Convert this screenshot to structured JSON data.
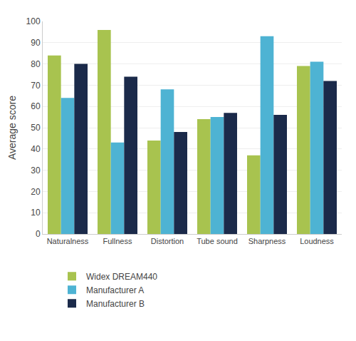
{
  "chart_data": {
    "type": "bar",
    "ylabel": "Average score",
    "categories": [
      "Naturalness",
      "Fullness",
      "Distortion",
      "Tube sound",
      "Sharpness",
      "Loudness"
    ],
    "series": [
      {
        "name": "Widex DREAM440",
        "color": "#a8c34f",
        "values": [
          84,
          96,
          44,
          54,
          37,
          79
        ]
      },
      {
        "name": "Manufacturer A",
        "color": "#4eb3d3",
        "values": [
          64,
          43,
          68,
          55,
          93,
          81
        ]
      },
      {
        "name": "Manufacturer B",
        "color": "#1b2a4a",
        "values": [
          80,
          74,
          48,
          57,
          56,
          72
        ]
      }
    ],
    "ylim": [
      0,
      100
    ],
    "yticks": [
      0,
      10,
      20,
      30,
      40,
      50,
      60,
      70,
      80,
      90,
      100
    ],
    "grid": true,
    "legend": "bottom"
  }
}
